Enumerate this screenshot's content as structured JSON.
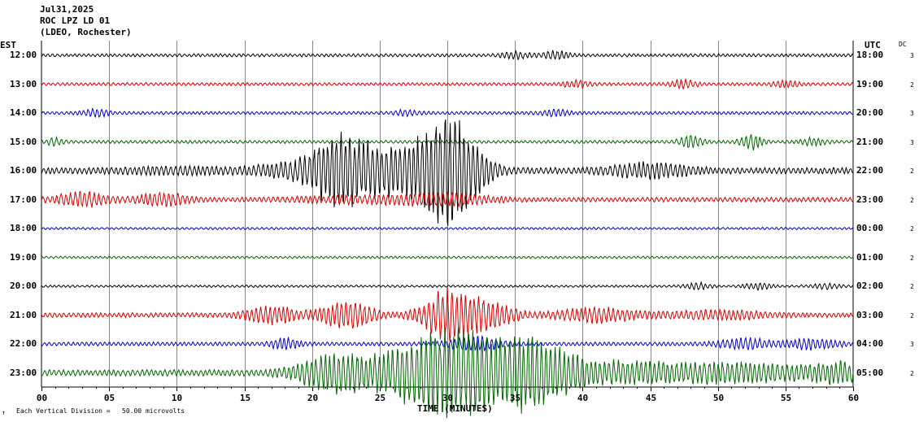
{
  "header": {
    "date": "Jul31,2025",
    "station": "ROC LPZ LD 01",
    "network": "(LDEO, Rochester)"
  },
  "left_axis_label": "EST",
  "right_axis_label": "UTC",
  "dc_label": "DC",
  "footer_note": "Each Vertical Division =   50.00 microvolts",
  "footer_mark": "↑",
  "chart_data": {
    "type": "line",
    "title": "",
    "xlabel": "TIME (MINUTES)",
    "ylabel": "",
    "xlim": [
      0,
      60
    ],
    "x_ticks": [
      "00",
      "05",
      "10",
      "15",
      "20",
      "25",
      "30",
      "35",
      "40",
      "45",
      "50",
      "55",
      "60"
    ],
    "grid": true,
    "colors": [
      "#000000",
      "#dd0000",
      "#0000cc",
      "#006600"
    ],
    "series": [
      {
        "est": "12:00",
        "utc": "18:00",
        "dc": "3",
        "color": "#000000",
        "base_amp": 2,
        "events": [
          [
            35,
            1,
            4
          ],
          [
            38,
            1,
            5
          ]
        ]
      },
      {
        "est": "13:00",
        "utc": "19:00",
        "dc": "2",
        "color": "#dd0000",
        "base_amp": 2,
        "events": [
          [
            39.5,
            1,
            4
          ],
          [
            47.5,
            1,
            5
          ],
          [
            55,
            1,
            4
          ]
        ]
      },
      {
        "est": "14:00",
        "utc": "20:00",
        "dc": "3",
        "color": "#0000cc",
        "base_amp": 2,
        "events": [
          [
            4,
            1,
            4
          ],
          [
            27,
            1,
            3
          ],
          [
            38,
            1,
            4
          ]
        ]
      },
      {
        "est": "15:00",
        "utc": "21:00",
        "dc": "3",
        "color": "#006600",
        "base_amp": 2,
        "events": [
          [
            1,
            0.6,
            4
          ],
          [
            48,
            0.8,
            9
          ],
          [
            52.5,
            0.8,
            9
          ],
          [
            57,
            1,
            4
          ]
        ]
      },
      {
        "est": "16:00",
        "utc": "22:00",
        "dc": "2",
        "color": "#000000",
        "base_amp": 4,
        "events": [
          [
            10,
            5,
            3
          ],
          [
            19,
            3,
            9
          ],
          [
            22,
            2,
            40
          ],
          [
            26,
            3,
            30
          ],
          [
            29.5,
            2,
            38
          ],
          [
            31,
            2,
            38
          ],
          [
            45,
            3,
            8
          ]
        ]
      },
      {
        "est": "17:00",
        "utc": "23:00",
        "dc": "2",
        "color": "#dd0000",
        "base_amp": 3,
        "events": [
          [
            3,
            2,
            8
          ],
          [
            9,
            2,
            7
          ],
          [
            25,
            6,
            4
          ],
          [
            30,
            3,
            5
          ]
        ]
      },
      {
        "est": "18:00",
        "utc": "00:00",
        "dc": "2",
        "color": "#0000cc",
        "base_amp": 1.5,
        "events": []
      },
      {
        "est": "19:00",
        "utc": "01:00",
        "dc": "2",
        "color": "#006600",
        "base_amp": 1.5,
        "events": []
      },
      {
        "est": "20:00",
        "utc": "02:00",
        "dc": "2",
        "color": "#000000",
        "base_amp": 1.5,
        "events": [
          [
            48.5,
            1,
            4
          ],
          [
            53,
            1,
            4
          ],
          [
            58,
            1,
            3
          ]
        ]
      },
      {
        "est": "21:00",
        "utc": "03:00",
        "dc": "2",
        "color": "#dd0000",
        "base_amp": 3,
        "events": [
          [
            17,
            2,
            10
          ],
          [
            22.5,
            2,
            18
          ],
          [
            30,
            2,
            30
          ],
          [
            33,
            2,
            16
          ],
          [
            41,
            3,
            8
          ],
          [
            50,
            4,
            5
          ]
        ]
      },
      {
        "est": "22:00",
        "utc": "04:00",
        "dc": "3",
        "color": "#0000cc",
        "base_amp": 2.5,
        "events": [
          [
            18,
            1,
            7
          ],
          [
            32,
            2,
            8
          ],
          [
            52,
            2,
            6
          ],
          [
            57,
            2,
            6
          ]
        ]
      },
      {
        "est": "23:00",
        "utc": "05:00",
        "dc": "2",
        "color": "#006600",
        "base_amp": 4,
        "events": [
          [
            22,
            3,
            24
          ],
          [
            28,
            3,
            36
          ],
          [
            31.5,
            3,
            40
          ],
          [
            36,
            3,
            38
          ],
          [
            42,
            6,
            12
          ],
          [
            52,
            6,
            10
          ],
          [
            59,
            2,
            10
          ]
        ]
      }
    ]
  }
}
